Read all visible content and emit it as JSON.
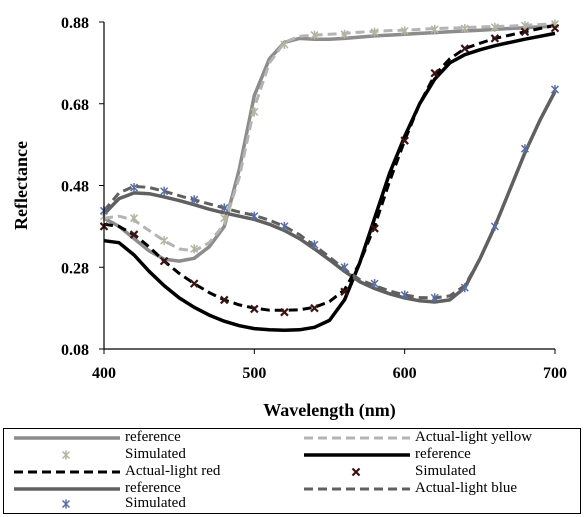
{
  "chart_data": {
    "type": "line",
    "xlabel": "Wavelength (nm)",
    "ylabel": "Reflectance",
    "xlim": [
      400,
      700
    ],
    "ylim": [
      0.08,
      0.88
    ],
    "xticks": [
      400,
      500,
      600,
      700
    ],
    "yticks": [
      0.08,
      0.28,
      0.48,
      0.68,
      0.88
    ],
    "ytick_labels": [
      "0.08",
      "0.28",
      "0.48",
      "0.68",
      "0.88"
    ],
    "grid": false,
    "legend_position": "bottom",
    "series": [
      {
        "name": "reference",
        "style": "solid",
        "color": "#8c8c8c",
        "width": 3.5,
        "x": [
          400,
          410,
          420,
          430,
          440,
          450,
          460,
          470,
          480,
          490,
          500,
          510,
          520,
          530,
          540,
          550,
          560,
          570,
          580,
          590,
          600,
          610,
          620,
          630,
          640,
          650,
          660,
          670,
          680,
          690,
          700
        ],
        "y": [
          0.4,
          0.38,
          0.35,
          0.32,
          0.3,
          0.295,
          0.302,
          0.33,
          0.38,
          0.52,
          0.7,
          0.79,
          0.83,
          0.84,
          0.838,
          0.838,
          0.84,
          0.843,
          0.846,
          0.848,
          0.85,
          0.852,
          0.854,
          0.856,
          0.858,
          0.86,
          0.862,
          0.864,
          0.866,
          0.868,
          0.87
        ]
      },
      {
        "name": "Actual-light yellow",
        "style": "dashed",
        "color": "#b4b4b4",
        "width": 3,
        "x": [
          400,
          410,
          420,
          430,
          440,
          450,
          460,
          470,
          480,
          490,
          500,
          510,
          520,
          530,
          540,
          550,
          560,
          570,
          580,
          590,
          600,
          610,
          620,
          630,
          640,
          650,
          660,
          670,
          680,
          690,
          700
        ],
        "y": [
          0.4,
          0.405,
          0.395,
          0.37,
          0.345,
          0.325,
          0.32,
          0.34,
          0.385,
          0.5,
          0.67,
          0.78,
          0.83,
          0.845,
          0.848,
          0.85,
          0.852,
          0.855,
          0.857,
          0.859,
          0.86,
          0.862,
          0.864,
          0.865,
          0.866,
          0.868,
          0.869,
          0.87,
          0.872,
          0.874,
          0.875
        ]
      },
      {
        "name": "Simulated",
        "style": "markers",
        "marker": "asterisk",
        "color": "#b4b4a0",
        "x": [
          400,
          420,
          440,
          460,
          480,
          500,
          520,
          540,
          560,
          580,
          600,
          620,
          640,
          660,
          680,
          700
        ],
        "y": [
          0.405,
          0.4,
          0.345,
          0.325,
          0.4,
          0.66,
          0.825,
          0.848,
          0.85,
          0.855,
          0.858,
          0.862,
          0.864,
          0.867,
          0.871,
          0.875
        ]
      },
      {
        "name": "reference",
        "style": "solid",
        "color": "#000000",
        "width": 3.5,
        "x": [
          400,
          410,
          420,
          430,
          440,
          450,
          460,
          470,
          480,
          490,
          500,
          510,
          520,
          530,
          540,
          550,
          560,
          570,
          580,
          590,
          600,
          610,
          620,
          630,
          640,
          650,
          660,
          670,
          680,
          690,
          700
        ],
        "y": [
          0.345,
          0.34,
          0.31,
          0.27,
          0.235,
          0.205,
          0.182,
          0.163,
          0.148,
          0.137,
          0.13,
          0.127,
          0.126,
          0.127,
          0.133,
          0.15,
          0.2,
          0.29,
          0.4,
          0.51,
          0.6,
          0.68,
          0.74,
          0.78,
          0.8,
          0.812,
          0.822,
          0.83,
          0.838,
          0.845,
          0.852
        ]
      },
      {
        "name": "Actual-light red",
        "style": "dashed",
        "color": "#000000",
        "width": 3,
        "x": [
          400,
          410,
          420,
          430,
          440,
          450,
          460,
          470,
          480,
          490,
          500,
          510,
          520,
          530,
          540,
          550,
          560,
          570,
          580,
          590,
          600,
          610,
          620,
          630,
          640,
          650,
          660,
          670,
          680,
          690,
          700
        ],
        "y": [
          0.385,
          0.38,
          0.36,
          0.33,
          0.295,
          0.265,
          0.24,
          0.218,
          0.2,
          0.188,
          0.18,
          0.175,
          0.175,
          0.176,
          0.182,
          0.196,
          0.225,
          0.29,
          0.38,
          0.49,
          0.59,
          0.68,
          0.75,
          0.79,
          0.815,
          0.828,
          0.84,
          0.848,
          0.856,
          0.864,
          0.872
        ]
      },
      {
        "name": "Simulated",
        "style": "markers",
        "marker": "x",
        "color": "#3c1414",
        "x": [
          400,
          420,
          440,
          460,
          480,
          500,
          520,
          540,
          560,
          580,
          600,
          620,
          640,
          660,
          680,
          700
        ],
        "y": [
          0.38,
          0.36,
          0.295,
          0.24,
          0.2,
          0.178,
          0.17,
          0.18,
          0.22,
          0.375,
          0.59,
          0.755,
          0.815,
          0.84,
          0.856,
          0.865
        ]
      },
      {
        "name": "reference",
        "style": "solid",
        "color": "#606060",
        "width": 3.5,
        "x": [
          400,
          410,
          420,
          430,
          440,
          450,
          460,
          470,
          480,
          490,
          500,
          510,
          520,
          530,
          540,
          550,
          560,
          570,
          580,
          590,
          600,
          610,
          620,
          630,
          640,
          650,
          660,
          670,
          680,
          690,
          700
        ],
        "y": [
          0.41,
          0.448,
          0.462,
          0.46,
          0.452,
          0.443,
          0.433,
          0.422,
          0.413,
          0.405,
          0.397,
          0.385,
          0.37,
          0.35,
          0.325,
          0.298,
          0.27,
          0.245,
          0.228,
          0.215,
          0.205,
          0.198,
          0.195,
          0.2,
          0.23,
          0.3,
          0.38,
          0.47,
          0.56,
          0.64,
          0.71
        ]
      },
      {
        "name": "Actual-light blue",
        "style": "dashed",
        "color": "#606060",
        "width": 3,
        "x": [
          400,
          410,
          420,
          430,
          440,
          450,
          460,
          470,
          480,
          490,
          500,
          510,
          520,
          530,
          540,
          550,
          560,
          570,
          580,
          590,
          600,
          610,
          620,
          630,
          640,
          650,
          660,
          670,
          680,
          690,
          700
        ],
        "y": [
          0.418,
          0.462,
          0.478,
          0.475,
          0.466,
          0.455,
          0.445,
          0.435,
          0.425,
          0.415,
          0.407,
          0.395,
          0.38,
          0.36,
          0.333,
          0.305,
          0.275,
          0.25,
          0.235,
          0.222,
          0.212,
          0.206,
          0.205,
          0.21,
          0.235,
          0.3,
          0.38,
          0.47,
          0.56,
          0.64,
          0.71
        ]
      },
      {
        "name": "Simulated",
        "style": "markers",
        "marker": "asterisk",
        "color": "#5a6ea0",
        "x": [
          400,
          420,
          440,
          460,
          480,
          500,
          520,
          540,
          560,
          580,
          600,
          620,
          640,
          660,
          680,
          700
        ],
        "y": [
          0.418,
          0.475,
          0.466,
          0.445,
          0.425,
          0.405,
          0.38,
          0.335,
          0.28,
          0.24,
          0.212,
          0.205,
          0.23,
          0.38,
          0.57,
          0.715
        ]
      }
    ]
  },
  "legend": {
    "items": [
      {
        "label": "reference",
        "series": 0
      },
      {
        "label": "Actual-light yellow",
        "series": 1
      },
      {
        "label": "Simulated",
        "series": 2
      },
      {
        "label": "reference",
        "series": 3
      },
      {
        "label": "Actual-light red",
        "series": 4
      },
      {
        "label": "Simulated",
        "series": 5
      },
      {
        "label": "reference",
        "series": 6
      },
      {
        "label": "Actual-light blue",
        "series": 7
      },
      {
        "label": "Simulated",
        "series": 8
      }
    ]
  }
}
